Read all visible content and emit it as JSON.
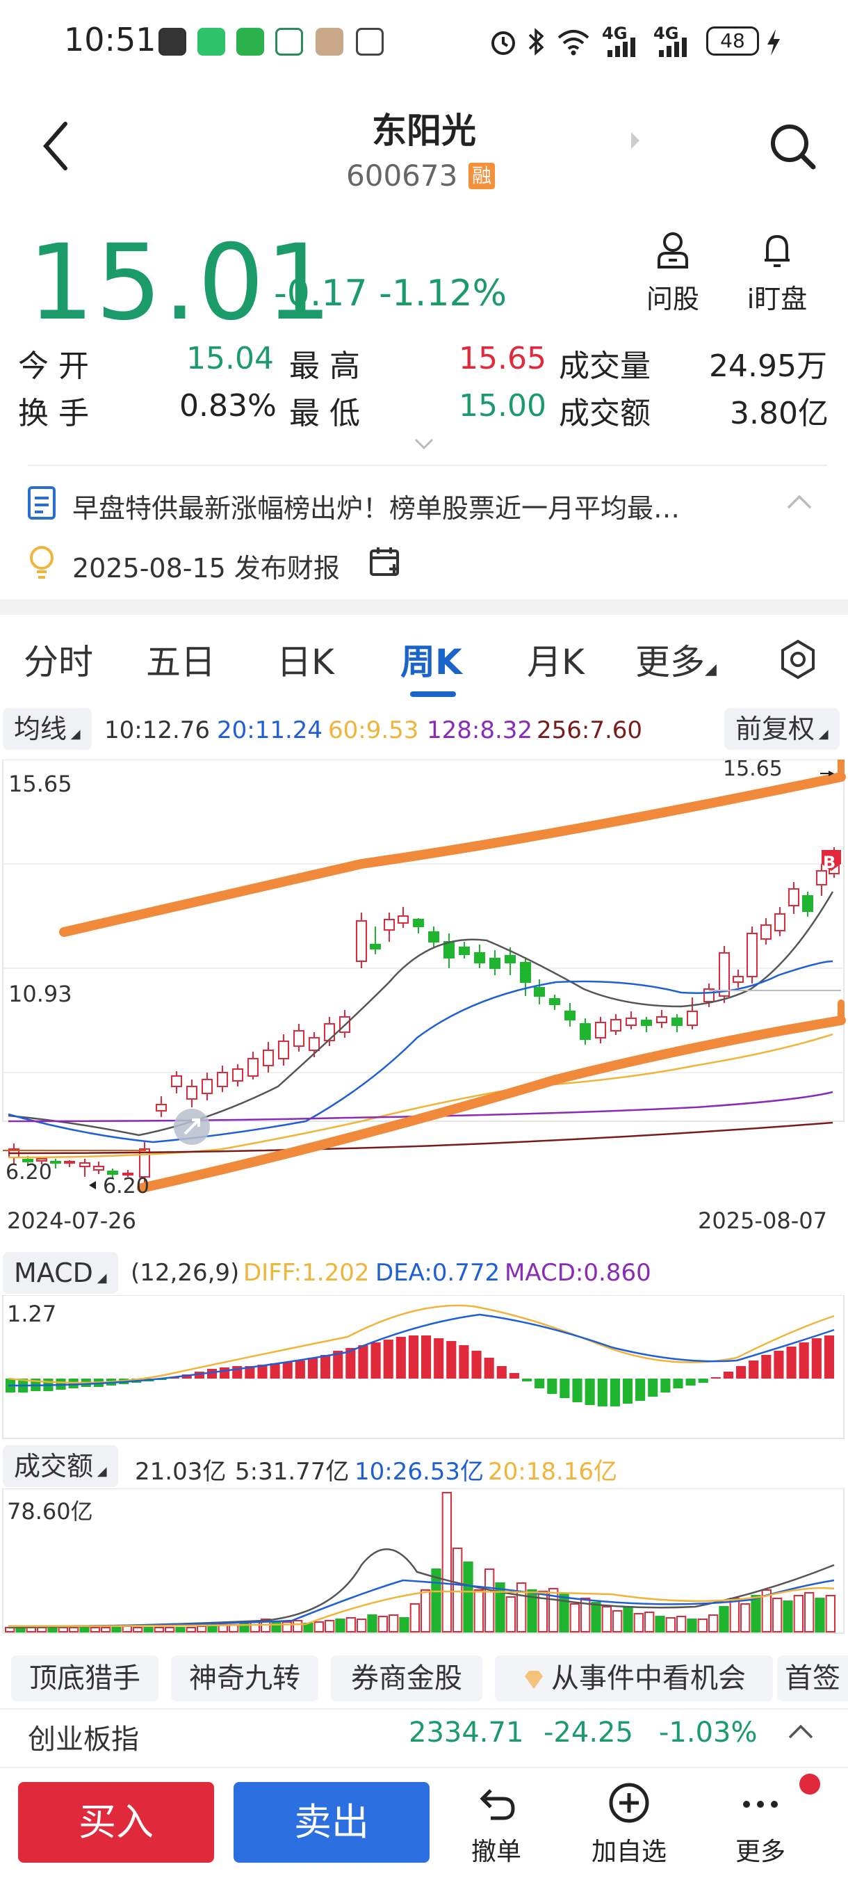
{
  "status_bar": {
    "time": "10:51",
    "network_1": "4G",
    "network_2": "4G",
    "battery": "48"
  },
  "header": {
    "title": "东阳光",
    "code": "600673",
    "margin_badge": "融"
  },
  "quote": {
    "price": "15.01",
    "change": "-0.17",
    "change_pct": "-1.12%",
    "actions": [
      {
        "label": "问股",
        "icon": "user-icon"
      },
      {
        "label": "i盯盘",
        "icon": "bell-icon"
      }
    ],
    "rows": [
      {
        "l1": "今  开",
        "v1": "15.04",
        "l2": "最  高",
        "v2": "15.65",
        "l3": "成交量",
        "v3": "24.95万"
      },
      {
        "l1": "换  手",
        "v1": "0.83%",
        "l2": "最  低",
        "v2": "15.00",
        "l3": "成交额",
        "v3": "3.80亿"
      }
    ]
  },
  "news": {
    "headline": "早盘特供最新涨幅榜出炉！榜单股票近一月平均最…",
    "report": "2025-08-15 发布财报"
  },
  "tabs": [
    "分时",
    "五日",
    "日K",
    "周K",
    "月K",
    "更多"
  ],
  "active_tab": "周K",
  "ma_bar": {
    "selector": "均线",
    "ma10": "10:12.76",
    "ma20": "20:11.24",
    "ma60": "60:9.53",
    "ma128": "128:8.32",
    "ma256": "256:7.60",
    "adjust": "前复权"
  },
  "kline": {
    "y_top_label": "15.65",
    "y_mid_label": "10.93",
    "high_marker": "15.65",
    "low_marker": "6.20",
    "low_left_label": "6.20",
    "start_date": "2024-07-26",
    "end_date": "2025-08-07",
    "buy_marker": "B"
  },
  "macd": {
    "selector": "MACD",
    "params": "(12,26,9)",
    "diff": "DIFF:1.202",
    "dea": "DEA:0.772",
    "macd": "MACD:0.860",
    "top_label": "1.27"
  },
  "volume": {
    "selector": "成交额",
    "v1": "21.03亿",
    "v5": "5:31.77亿",
    "v10": "10:26.53亿",
    "v20": "20:18.16亿",
    "top_label": "78.60亿"
  },
  "features": [
    "顶底猎手",
    "神奇九转",
    "券商金股",
    "从事件中看机会",
    "首签"
  ],
  "index_bar": {
    "name": "创业板指",
    "value": "2334.71",
    "change": "-24.25",
    "change_pct": "-1.03%"
  },
  "bottom_bar": {
    "buy": "买入",
    "sell": "卖出",
    "cancel": "撤单",
    "add": "加自选",
    "more": "更多"
  },
  "colors": {
    "up": "#e0293a",
    "down": "#1fb52e",
    "price_green": "#1b9a6a",
    "accent_blue": "#1a63c9",
    "ma10": "#555555",
    "ma20": "#1f5fd6",
    "ma60": "#f0b43a",
    "ma128": "#8a2bb8",
    "ma256": "#7a1b1b",
    "annotation": "#f08a3a"
  }
}
